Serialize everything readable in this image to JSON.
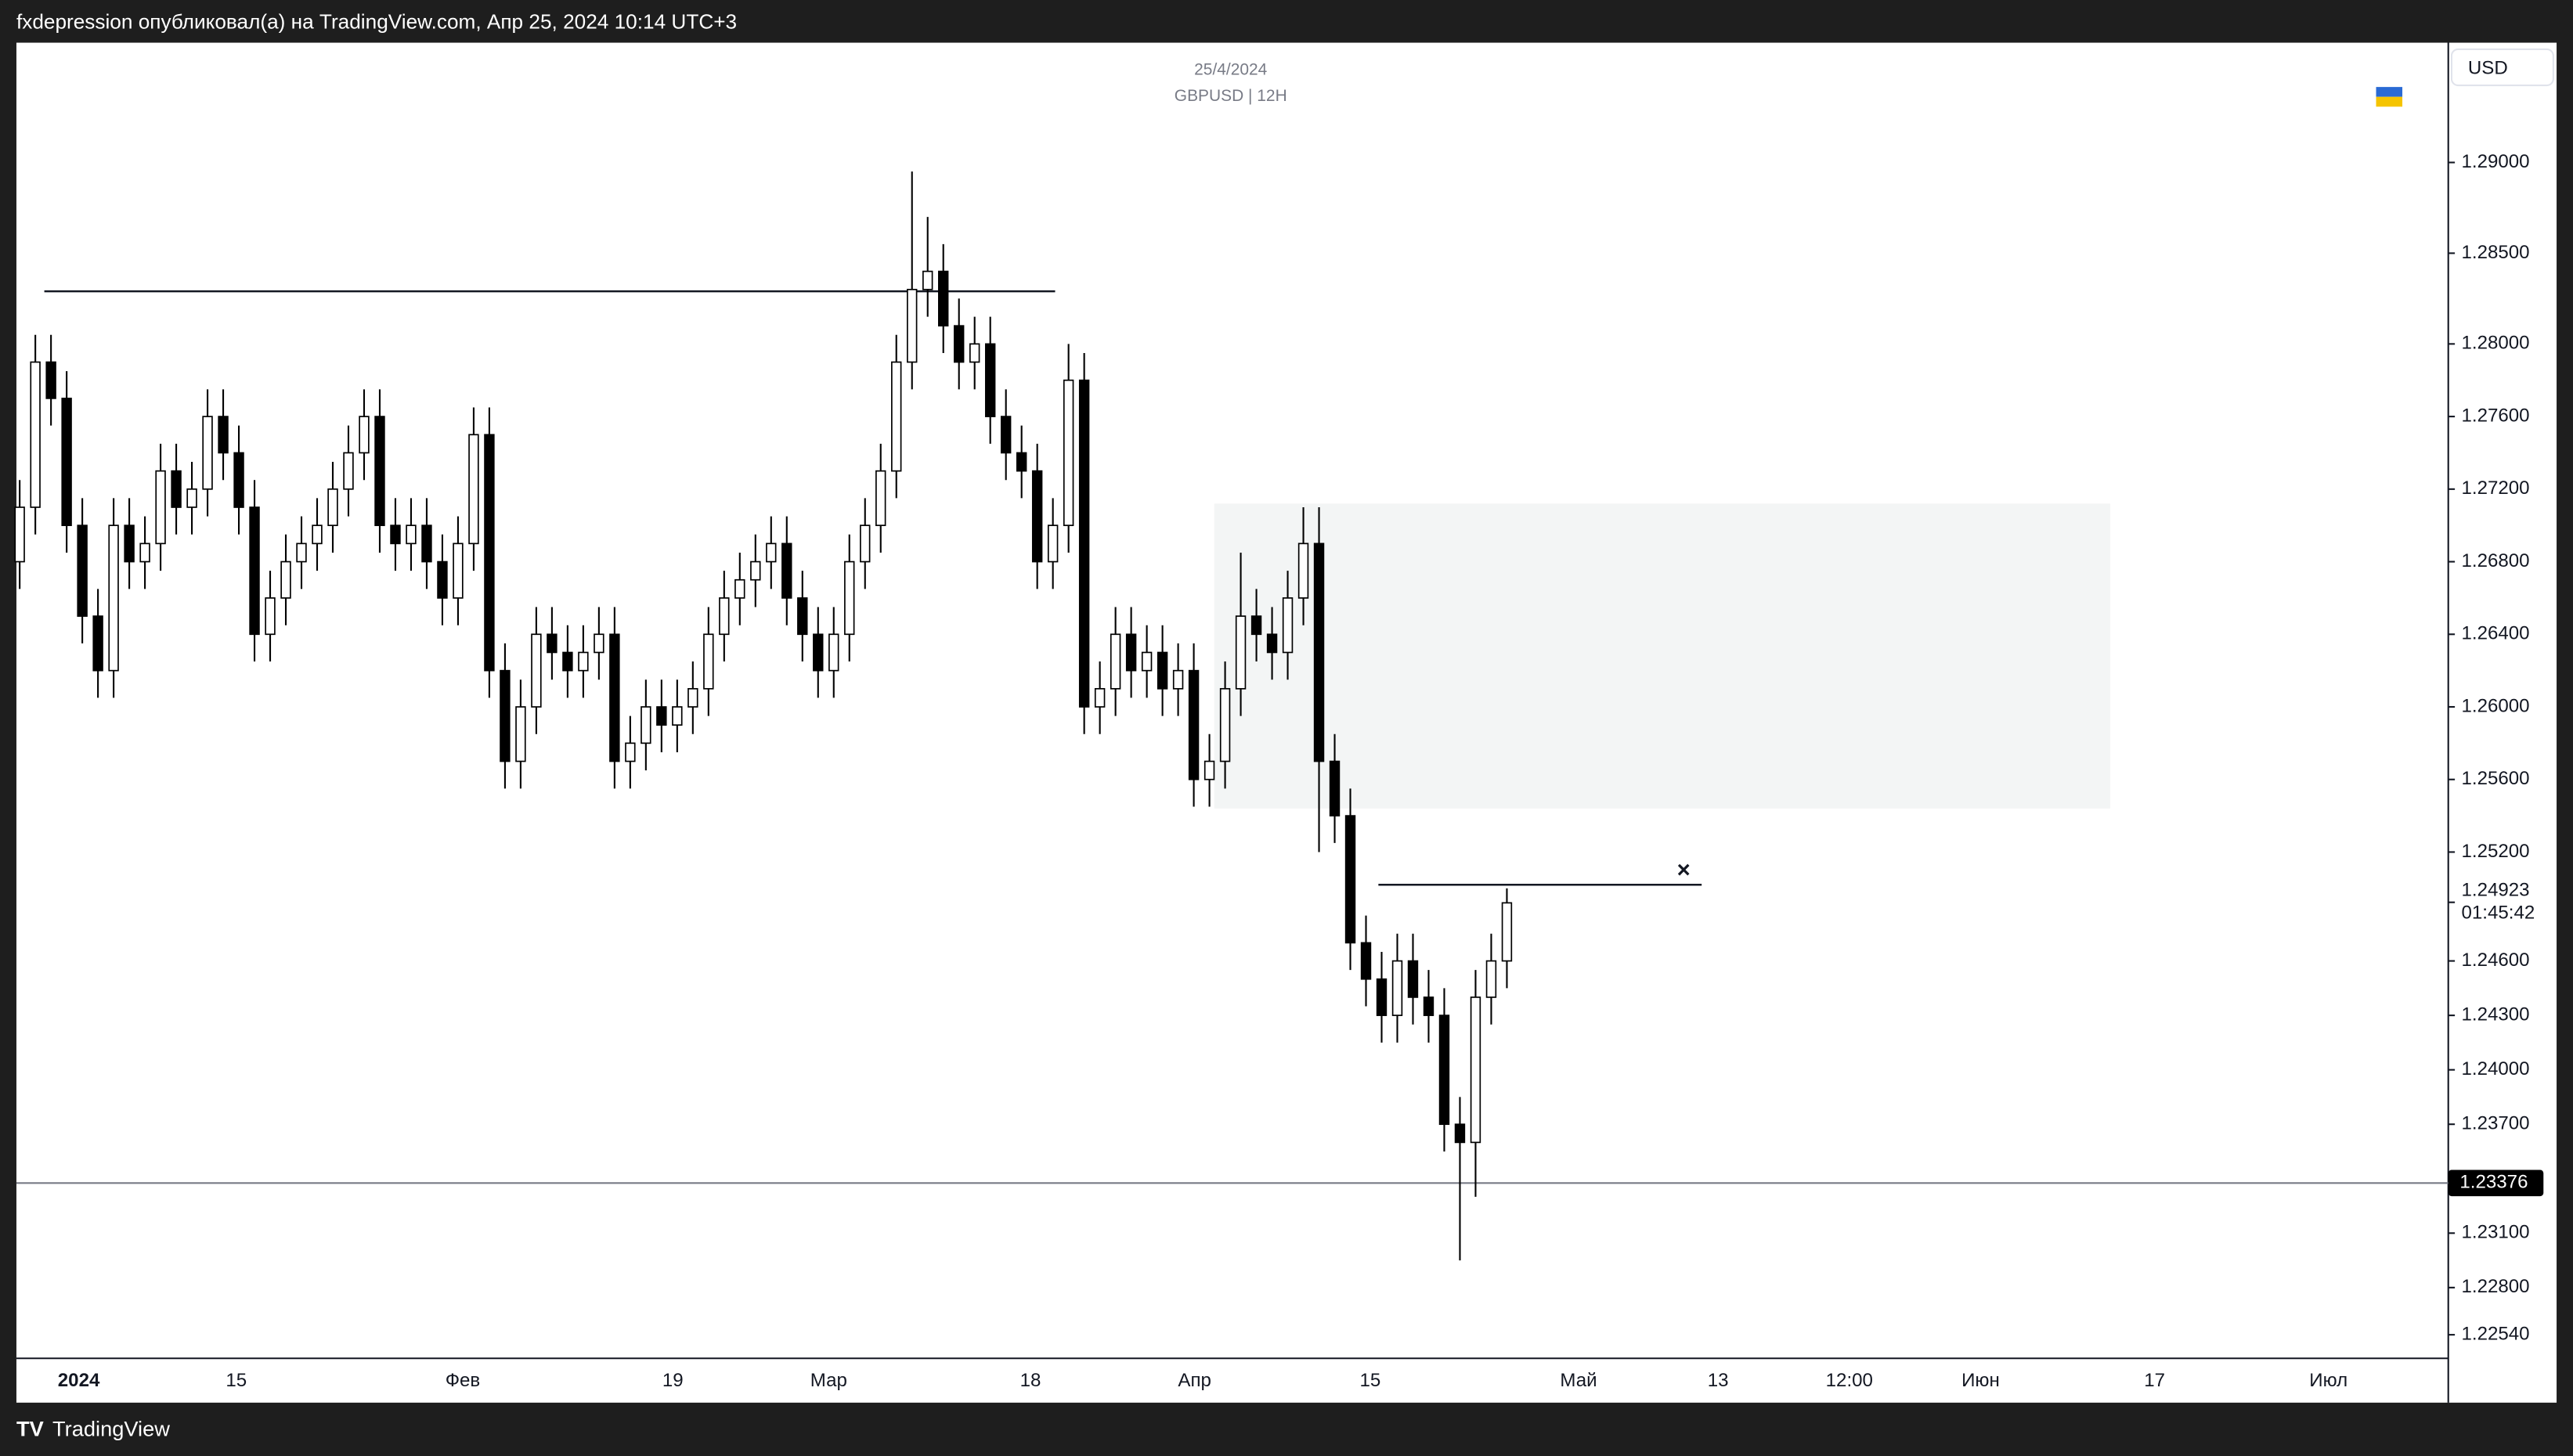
{
  "header": {
    "title": "fxdepression опубликовал(а) на TradingView.com, Апр 25, 2024 10:14 UTC+3"
  },
  "footer": {
    "brand": "TradingView"
  },
  "chart_data": {
    "type": "candlestick",
    "date": "25/4/2024",
    "symbol": "GBPUSD | 12H",
    "currency": "USD",
    "time_labels": [
      "2024",
      "15",
      "Фев",
      "19",
      "Мар",
      "18",
      "Апр",
      "15",
      "Май",
      "13",
      "12:00",
      "Июн",
      "17",
      "Июл"
    ],
    "ylim": [
      1.2241,
      1.2966
    ],
    "yticks": [
      {
        "value": 1.29,
        "label": "1.29000"
      },
      {
        "value": 1.285,
        "label": "1.28500"
      },
      {
        "value": 1.28,
        "label": "1.28000"
      },
      {
        "value": 1.276,
        "label": "1.27600"
      },
      {
        "value": 1.272,
        "label": "1.27200"
      },
      {
        "value": 1.268,
        "label": "1.26800"
      },
      {
        "value": 1.264,
        "label": "1.26400"
      },
      {
        "value": 1.26,
        "label": "1.26000"
      },
      {
        "value": 1.256,
        "label": "1.25600"
      },
      {
        "value": 1.252,
        "label": "1.25200"
      },
      {
        "value": 1.246,
        "label": "1.24600"
      },
      {
        "value": 1.243,
        "label": "1.24300"
      },
      {
        "value": 1.24,
        "label": "1.24000"
      },
      {
        "value": 1.237,
        "label": "1.23700"
      },
      {
        "value": 1.231,
        "label": "1.23100"
      },
      {
        "value": 1.228,
        "label": "1.22800"
      },
      {
        "value": 1.2254,
        "label": "1.22540"
      }
    ],
    "last_price": {
      "value": 1.24923,
      "label": "1.24923",
      "countdown": "01:45:42"
    },
    "marked_price": {
      "value": 1.23376,
      "label": "1.23376"
    },
    "levels": [
      1.2829,
      1.2502
    ],
    "zone": [
      1.2544,
      1.2712
    ],
    "up_color": "#ffffff",
    "down_color": "#000000",
    "open": [
      1.268,
      1.271,
      1.279,
      1.277,
      1.27,
      1.265,
      1.262,
      1.27,
      1.268,
      1.269,
      1.273,
      1.271,
      1.272,
      1.276,
      1.274,
      1.271,
      1.264,
      1.266,
      1.268,
      1.269,
      1.27,
      1.272,
      1.274,
      1.276,
      1.27,
      1.269,
      1.27,
      1.268,
      1.266,
      1.269,
      1.275,
      1.262,
      1.257,
      1.26,
      1.264,
      1.263,
      1.262,
      1.263,
      1.264,
      1.257,
      1.258,
      1.26,
      1.259,
      1.26,
      1.261,
      1.264,
      1.266,
      1.267,
      1.268,
      1.269,
      1.266,
      1.264,
      1.262,
      1.264,
      1.268,
      1.27,
      1.273,
      1.279,
      1.283,
      1.284,
      1.281,
      1.279,
      1.28,
      1.276,
      1.274,
      1.273,
      1.268,
      1.27,
      1.278,
      1.26,
      1.261,
      1.264,
      1.262,
      1.263,
      1.261,
      1.262,
      1.256,
      1.257,
      1.261,
      1.265,
      1.264,
      1.263,
      1.266,
      1.269,
      1.257,
      1.254,
      1.247,
      1.245,
      1.243,
      1.246,
      1.244,
      1.243,
      1.237,
      1.236,
      1.244,
      1.246
    ],
    "high": [
      1.2725,
      1.2805,
      1.2805,
      1.2785,
      1.2715,
      1.2665,
      1.2715,
      1.2715,
      1.2705,
      1.2745,
      1.2745,
      1.2735,
      1.2775,
      1.2775,
      1.2755,
      1.2725,
      1.2675,
      1.2695,
      1.2705,
      1.2715,
      1.2735,
      1.2755,
      1.2775,
      1.2775,
      1.2715,
      1.2715,
      1.2715,
      1.2695,
      1.2705,
      1.2765,
      1.2765,
      1.2635,
      1.2615,
      1.2655,
      1.2655,
      1.2645,
      1.2645,
      1.2655,
      1.2655,
      1.2595,
      1.2615,
      1.2615,
      1.2615,
      1.2625,
      1.2655,
      1.2675,
      1.2685,
      1.2695,
      1.2705,
      1.2705,
      1.2675,
      1.2655,
      1.2655,
      1.2695,
      1.2715,
      1.2745,
      1.2805,
      1.2895,
      1.287,
      1.2855,
      1.2825,
      1.2815,
      1.2815,
      1.2775,
      1.2755,
      1.2745,
      1.2715,
      1.28,
      1.2795,
      1.2625,
      1.2655,
      1.2655,
      1.2645,
      1.2645,
      1.2635,
      1.2635,
      1.2585,
      1.2625,
      1.2685,
      1.2665,
      1.2655,
      1.2675,
      1.271,
      1.271,
      1.2585,
      1.2555,
      1.2485,
      1.2465,
      1.2475,
      1.2475,
      1.2455,
      1.2445,
      1.2385,
      1.2455,
      1.2475,
      1.25
    ],
    "low": [
      1.2665,
      1.2695,
      1.2755,
      1.2685,
      1.2635,
      1.2605,
      1.2605,
      1.2665,
      1.2665,
      1.2675,
      1.2695,
      1.2695,
      1.2705,
      1.2725,
      1.2695,
      1.2625,
      1.2625,
      1.2645,
      1.2665,
      1.2675,
      1.2685,
      1.2705,
      1.2725,
      1.2685,
      1.2675,
      1.2675,
      1.2665,
      1.2645,
      1.2645,
      1.2675,
      1.2605,
      1.2555,
      1.2555,
      1.2585,
      1.2615,
      1.2605,
      1.2605,
      1.2615,
      1.2555,
      1.2555,
      1.2565,
      1.2575,
      1.2575,
      1.2585,
      1.2595,
      1.2625,
      1.2645,
      1.2655,
      1.2665,
      1.2645,
      1.2625,
      1.2605,
      1.2605,
      1.2625,
      1.2665,
      1.2685,
      1.2715,
      1.2775,
      1.2815,
      1.2795,
      1.2775,
      1.2775,
      1.2745,
      1.2725,
      1.2715,
      1.2665,
      1.2665,
      1.2685,
      1.2585,
      1.2585,
      1.2595,
      1.2605,
      1.2605,
      1.2595,
      1.2595,
      1.2545,
      1.2545,
      1.2555,
      1.2595,
      1.2625,
      1.2615,
      1.2615,
      1.2645,
      1.252,
      1.2525,
      1.2455,
      1.2435,
      1.2415,
      1.2415,
      1.2425,
      1.2415,
      1.2355,
      1.2295,
      1.233,
      1.2425,
      1.2445
    ],
    "close": [
      1.271,
      1.279,
      1.277,
      1.27,
      1.265,
      1.262,
      1.27,
      1.268,
      1.269,
      1.273,
      1.271,
      1.272,
      1.276,
      1.274,
      1.271,
      1.264,
      1.266,
      1.268,
      1.269,
      1.27,
      1.272,
      1.274,
      1.276,
      1.27,
      1.269,
      1.27,
      1.268,
      1.266,
      1.269,
      1.275,
      1.262,
      1.257,
      1.26,
      1.264,
      1.263,
      1.262,
      1.263,
      1.264,
      1.257,
      1.258,
      1.26,
      1.259,
      1.26,
      1.261,
      1.264,
      1.266,
      1.267,
      1.268,
      1.269,
      1.266,
      1.264,
      1.262,
      1.264,
      1.268,
      1.27,
      1.273,
      1.279,
      1.283,
      1.284,
      1.281,
      1.279,
      1.28,
      1.276,
      1.274,
      1.273,
      1.268,
      1.27,
      1.278,
      1.26,
      1.261,
      1.264,
      1.262,
      1.263,
      1.261,
      1.262,
      1.256,
      1.257,
      1.261,
      1.265,
      1.264,
      1.263,
      1.266,
      1.269,
      1.257,
      1.254,
      1.247,
      1.245,
      1.243,
      1.246,
      1.244,
      1.243,
      1.237,
      1.236,
      1.244,
      1.246,
      1.2492
    ]
  }
}
